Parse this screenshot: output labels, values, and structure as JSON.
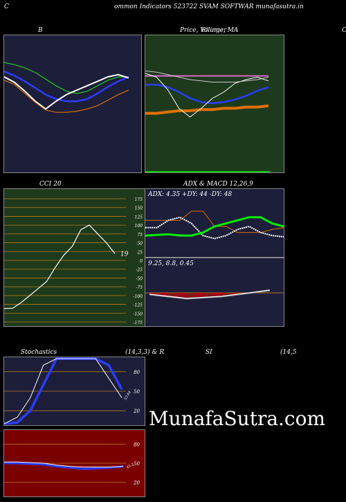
{
  "header": {
    "left_letter": "C",
    "title": "ommon  Indicators 523722  SVAM SOFTWAR munafasutra.in",
    "right_letter": "C"
  },
  "watermark": "MunafaSutra.com",
  "colors": {
    "navy": "#1c1e3a",
    "green_bg": "#1e3a1c",
    "darkred_bg": "#7a0000",
    "white": "#ffffff",
    "blue": "#2a3cff",
    "green_line": "#22cc22",
    "bright_green": "#00ee00",
    "orange": "#e07000",
    "magenta": "#dd66cc",
    "grid_orange": "#b87a1a",
    "macd_red": "#dd0000"
  },
  "chart_data": [
    {
      "id": "bollinger",
      "type": "line",
      "title": "B",
      "y_domain": [
        0,
        100
      ],
      "series": [
        {
          "color": "#22cc22",
          "values": [
            88,
            86,
            83,
            79,
            73,
            67,
            62,
            60,
            62,
            67,
            72,
            75,
            75
          ]
        },
        {
          "color": "#2a3cff",
          "values": [
            80,
            76,
            71,
            65,
            59,
            55,
            53,
            53,
            55,
            60,
            66,
            71,
            75
          ]
        },
        {
          "color": "#ffffff",
          "values": [
            75,
            70,
            62,
            53,
            46,
            53,
            59,
            63,
            67,
            71,
            75,
            77,
            74
          ]
        },
        {
          "color": "#e07000",
          "values": [
            72,
            68,
            60,
            52,
            45,
            43,
            43,
            44,
            46,
            49,
            54,
            59,
            63
          ]
        }
      ]
    },
    {
      "id": "price_ma",
      "type": "line",
      "title": "Price, Volume, MA",
      "overlay_label": "Ellinger",
      "y_domain": [
        0,
        100
      ],
      "series": [
        {
          "color": "#dd66cc",
          "values": [
            73,
            73,
            73,
            73,
            73,
            73,
            73,
            73,
            73,
            73,
            73,
            73
          ]
        },
        {
          "color": "#e07000",
          "values": [
            43,
            43,
            44,
            45,
            45,
            46,
            46,
            47,
            47,
            48,
            48,
            49
          ]
        },
        {
          "color": "#2a3cff",
          "values": [
            66,
            66,
            64,
            60,
            55,
            52,
            51,
            52,
            54,
            57,
            61,
            64
          ]
        },
        {
          "color": "#ffffff",
          "values": [
            75,
            72,
            62,
            47,
            40,
            47,
            55,
            60,
            67,
            70,
            72,
            69
          ]
        },
        {
          "color": "#cccccc",
          "values": [
            77,
            76,
            74,
            72,
            70,
            69,
            68,
            68,
            68,
            69,
            70,
            72
          ]
        }
      ]
    },
    {
      "id": "cci",
      "type": "line",
      "title": "CCI 20",
      "ylim": [
        -175,
        175
      ],
      "yticks": [
        175,
        150,
        125,
        100,
        75,
        50,
        25,
        0,
        -25,
        -50,
        -75,
        -100,
        -125,
        -150,
        -175
      ],
      "last_value_label": "19",
      "values": [
        -137,
        -136,
        -120,
        -100,
        -80,
        -60,
        -20,
        15,
        40,
        87,
        100,
        75,
        50,
        19
      ]
    },
    {
      "id": "adx_macd",
      "type": "line",
      "title": "ADX  & MACD 12,26,9",
      "adx_label": "ADX: 4.35 +DY: 44  -DY: 48",
      "macd_label": "9.25,  8.8,  0.45",
      "adx_series": [
        {
          "color": "#e07000",
          "values": [
            60,
            60,
            60,
            60,
            75,
            75,
            50,
            50,
            40,
            40,
            40,
            45,
            48
          ]
        },
        {
          "color": "#ffffff",
          "values": [
            48,
            48,
            60,
            65,
            55,
            35,
            30,
            35,
            45,
            50,
            40,
            35,
            33
          ]
        },
        {
          "color": "#00ee00",
          "values": [
            35,
            36,
            37,
            35,
            35,
            40,
            50,
            55,
            60,
            65,
            65,
            55,
            50
          ]
        }
      ]
    },
    {
      "id": "stochastics",
      "type": "line",
      "title": "Stochastics",
      "params": "(14,3,3) & R",
      "yticks": [
        80,
        50,
        20
      ],
      "last_value_label": "53.64",
      "series": [
        {
          "color": "#2a3cff",
          "values": [
            0,
            2,
            20,
            60,
            100,
            100,
            100,
            100,
            90,
            53
          ]
        },
        {
          "color": "#ffffff",
          "values": [
            0,
            10,
            40,
            90,
            100,
            100,
            100,
            100,
            70,
            40
          ]
        }
      ]
    },
    {
      "id": "rsi",
      "type": "line",
      "title": "SI",
      "params": "(14,5",
      "yticks": [
        80,
        50,
        20
      ],
      "last_value_label": "45.2",
      "series": [
        {
          "color": "#2a3cff",
          "values": [
            50,
            50,
            49,
            48,
            45,
            43,
            41,
            42,
            43,
            45
          ]
        },
        {
          "color": "#ffffff",
          "values": [
            52,
            52,
            51,
            50,
            47,
            45,
            44,
            44,
            44,
            45
          ]
        }
      ]
    }
  ]
}
